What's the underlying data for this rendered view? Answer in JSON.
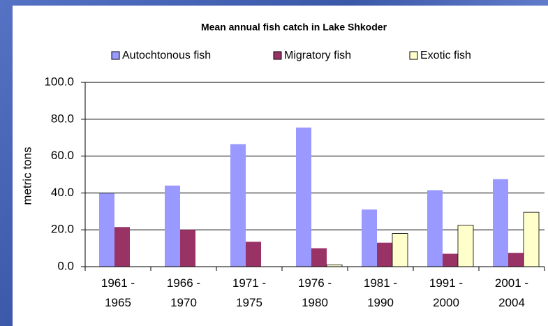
{
  "chart_data": {
    "type": "bar",
    "title": "Mean annual fish catch in Lake Shkoder",
    "y_label": "metric tons",
    "categories": [
      "1961 - 1965",
      "1966 - 1970",
      "1971 - 1975",
      "1976 - 1980",
      "1981 - 1990",
      "1991 - 2000",
      "2001 - 2004"
    ],
    "series": [
      {
        "name": "Autochtonous fish",
        "color": "#9999ff",
        "values": [
          39.8,
          44,
          66.5,
          75.5,
          31,
          41.5,
          47.5
        ]
      },
      {
        "name": "Migratory fish",
        "color": "#993366",
        "values": [
          21.5,
          20,
          13.5,
          10,
          13,
          7,
          7.5
        ]
      },
      {
        "name": "Exotic fish",
        "color": "#ffffcc",
        "values": [
          0,
          0,
          0,
          1,
          18,
          22.5,
          29.5
        ]
      }
    ],
    "ylim": [
      0,
      100
    ],
    "yticks": [
      {
        "value": 0,
        "label": "0.0"
      },
      {
        "value": 20,
        "label": "20.0"
      },
      {
        "value": 40,
        "label": "40.0"
      },
      {
        "value": 60,
        "label": "60.0"
      },
      {
        "value": 80,
        "label": "80.0"
      },
      {
        "value": 100,
        "label": "100.0"
      }
    ],
    "grid": true,
    "legend": "top"
  }
}
